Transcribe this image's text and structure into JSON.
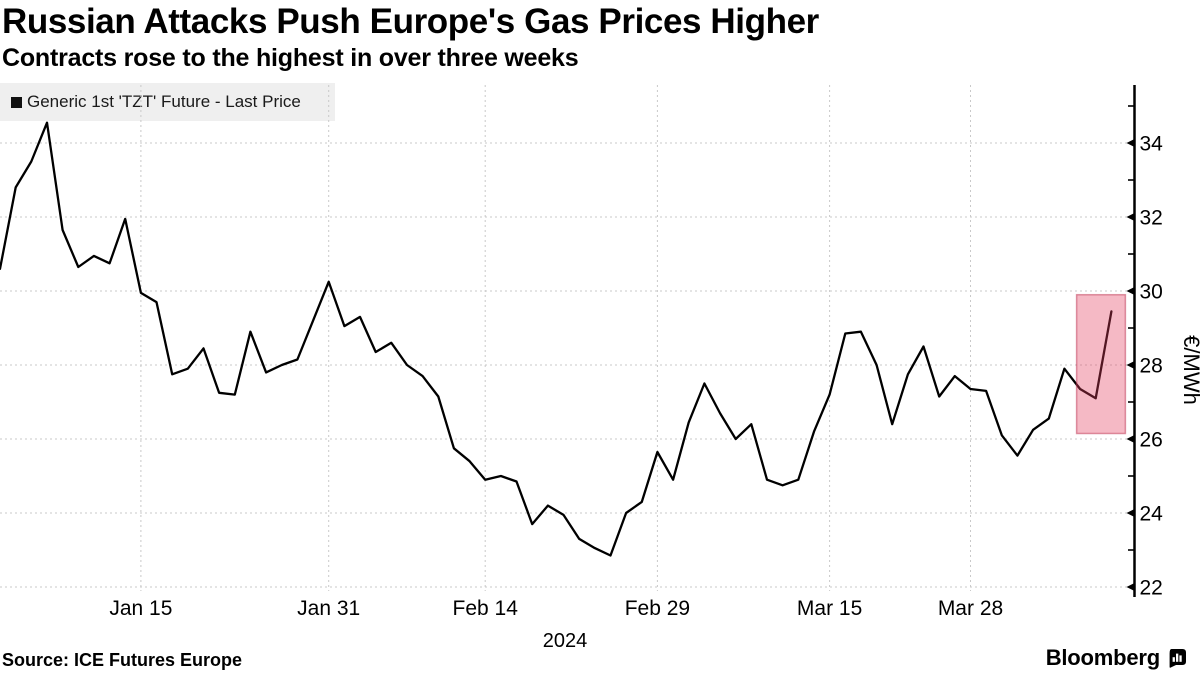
{
  "header": {
    "title": "Russian Attacks Push Europe's Gas Prices Higher",
    "subtitle": "Contracts rose to the highest in over three weeks"
  },
  "legend": {
    "label": "Generic 1st 'TZT' Future - Last Price",
    "swatch_color": "#111111"
  },
  "footer": {
    "source": "Source: ICE Futures Europe",
    "brand": "Bloomberg"
  },
  "chart_data": {
    "type": "line",
    "title": "Russian Attacks Push Europe's Gas Prices Higher",
    "subtitle": "Contracts rose to the highest in over three weeks",
    "ylabel": "€/MWh",
    "year_label": "2024",
    "legend_position": "top-left",
    "grid": true,
    "line_color": "#000000",
    "grid_color": "#c9c9c9",
    "x": [
      "Jan 2",
      "Jan 3",
      "Jan 4",
      "Jan 5",
      "Jan 8",
      "Jan 9",
      "Jan 10",
      "Jan 11",
      "Jan 12",
      "Jan 15",
      "Jan 16",
      "Jan 17",
      "Jan 18",
      "Jan 19",
      "Jan 22",
      "Jan 23",
      "Jan 24",
      "Jan 25",
      "Jan 26",
      "Jan 29",
      "Jan 30",
      "Jan 31",
      "Feb 1",
      "Feb 2",
      "Feb 5",
      "Feb 6",
      "Feb 7",
      "Feb 8",
      "Feb 9",
      "Feb 12",
      "Feb 13",
      "Feb 14",
      "Feb 15",
      "Feb 16",
      "Feb 19",
      "Feb 20",
      "Feb 21",
      "Feb 22",
      "Feb 23",
      "Feb 26",
      "Feb 27",
      "Feb 28",
      "Feb 29",
      "Mar 1",
      "Mar 4",
      "Mar 5",
      "Mar 6",
      "Mar 7",
      "Mar 8",
      "Mar 11",
      "Mar 12",
      "Mar 13",
      "Mar 14",
      "Mar 15",
      "Mar 18",
      "Mar 19",
      "Mar 20",
      "Mar 21",
      "Mar 22",
      "Mar 25",
      "Mar 26",
      "Mar 27",
      "Mar 28",
      "Apr 2",
      "Apr 3",
      "Apr 4",
      "Apr 5",
      "Apr 8",
      "Apr 9",
      "Apr 10",
      "Apr 11",
      "Apr 12"
    ],
    "series": [
      {
        "name": "Generic 1st 'TZT' Future - Last Price",
        "color": "#000000",
        "values": [
          30.6,
          32.8,
          33.5,
          34.55,
          31.65,
          30.65,
          30.95,
          30.75,
          31.95,
          29.95,
          29.7,
          27.75,
          27.9,
          28.45,
          27.25,
          27.2,
          28.9,
          27.8,
          28.0,
          28.15,
          29.2,
          30.25,
          29.05,
          29.3,
          28.35,
          28.6,
          28.0,
          27.7,
          27.15,
          25.75,
          25.4,
          24.9,
          25.0,
          24.85,
          23.7,
          24.2,
          23.95,
          23.3,
          23.05,
          22.85,
          24.0,
          24.3,
          25.65,
          24.9,
          26.45,
          27.5,
          26.7,
          26.0,
          26.4,
          24.9,
          24.75,
          24.9,
          26.2,
          27.2,
          28.85,
          28.9,
          28.0,
          26.4,
          27.75,
          28.5,
          27.15,
          27.7,
          27.35,
          27.3,
          26.1,
          25.55,
          26.25,
          26.55,
          27.9,
          27.35,
          27.1,
          29.45
        ]
      }
    ],
    "x_tick_labels": [
      "Jan 15",
      "Jan 31",
      "Feb 14",
      "Feb 29",
      "Mar 15",
      "Mar 28"
    ],
    "y_ticks": [
      22,
      24,
      26,
      28,
      30,
      32,
      34
    ],
    "y_minor_ticks": [
      23,
      25,
      27,
      29,
      31,
      33,
      35
    ],
    "ylim": [
      21.2,
      35.6
    ],
    "highlight_region": {
      "start": "Apr 10",
      "end": "Apr 12",
      "value_low": 26.15,
      "value_high": 29.9,
      "fill": "rgba(228,60,95,0.36)",
      "stroke": "rgba(190,50,80,0.5)"
    }
  }
}
